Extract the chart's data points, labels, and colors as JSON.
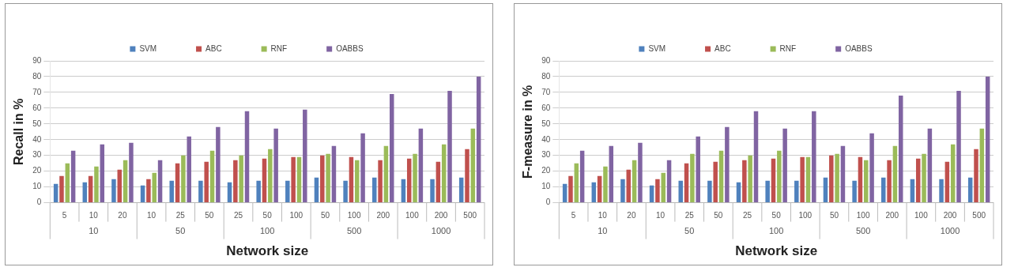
{
  "chart_data": [
    {
      "type": "bar",
      "ylabel": "Recall in %",
      "xlabel": "Network size",
      "categories": [
        "5",
        "10",
        "20",
        "10",
        "25",
        "50",
        "25",
        "50",
        "100",
        "50",
        "100",
        "200",
        "100",
        "200",
        "500"
      ],
      "annotations": [
        "10",
        "50",
        "100",
        "500",
        "1000"
      ],
      "series": [
        {
          "name": "SVM",
          "color": "#4f81bd",
          "values": [
            12,
            13,
            15,
            11,
            14,
            14,
            13,
            14,
            14,
            16,
            14,
            16,
            15,
            15,
            16
          ]
        },
        {
          "name": "ABC",
          "color": "#c0504d",
          "values": [
            17,
            17,
            21,
            15,
            25,
            26,
            27,
            28,
            29,
            30,
            29,
            27,
            28,
            26,
            34
          ]
        },
        {
          "name": "RNF",
          "color": "#9bbb59",
          "values": [
            25,
            23,
            27,
            19,
            30,
            33,
            30,
            34,
            29,
            31,
            27,
            36,
            31,
            37,
            47
          ]
        },
        {
          "name": "OABBS",
          "color": "#8064a2",
          "values": [
            33,
            37,
            38,
            27,
            42,
            48,
            58,
            47,
            59,
            36,
            44,
            69,
            47,
            71,
            80
          ]
        }
      ],
      "ylim": [
        0,
        90
      ],
      "yticks": [
        0,
        10,
        20,
        30,
        40,
        50,
        60,
        70,
        80,
        90
      ],
      "grid": "y",
      "legend": "top"
    },
    {
      "type": "bar",
      "ylabel": "F-measure in %",
      "xlabel": "Network size",
      "categories": [
        "5",
        "10",
        "20",
        "10",
        "25",
        "50",
        "25",
        "50",
        "100",
        "50",
        "100",
        "200",
        "100",
        "200",
        "500"
      ],
      "annotations": [
        "10",
        "50",
        "100",
        "500",
        "1000"
      ],
      "series": [
        {
          "name": "SVM",
          "color": "#4f81bd",
          "values": [
            12,
            13,
            15,
            11,
            14,
            14,
            13,
            14,
            14,
            16,
            14,
            16,
            15,
            15,
            16
          ]
        },
        {
          "name": "ABC",
          "color": "#c0504d",
          "values": [
            17,
            17,
            21,
            15,
            25,
            26,
            27,
            28,
            29,
            30,
            29,
            27,
            28,
            26,
            34
          ]
        },
        {
          "name": "RNF",
          "color": "#9bbb59",
          "values": [
            25,
            23,
            27,
            19,
            31,
            33,
            30,
            33,
            29,
            31,
            27,
            36,
            31,
            37,
            47
          ]
        },
        {
          "name": "OABBS",
          "color": "#8064a2",
          "values": [
            33,
            36,
            38,
            27,
            42,
            48,
            58,
            47,
            58,
            36,
            44,
            68,
            47,
            71,
            80
          ]
        }
      ],
      "ylim": [
        0,
        90
      ],
      "yticks": [
        0,
        10,
        20,
        30,
        40,
        50,
        60,
        70,
        80,
        90
      ],
      "grid": "y",
      "legend": "top"
    }
  ]
}
